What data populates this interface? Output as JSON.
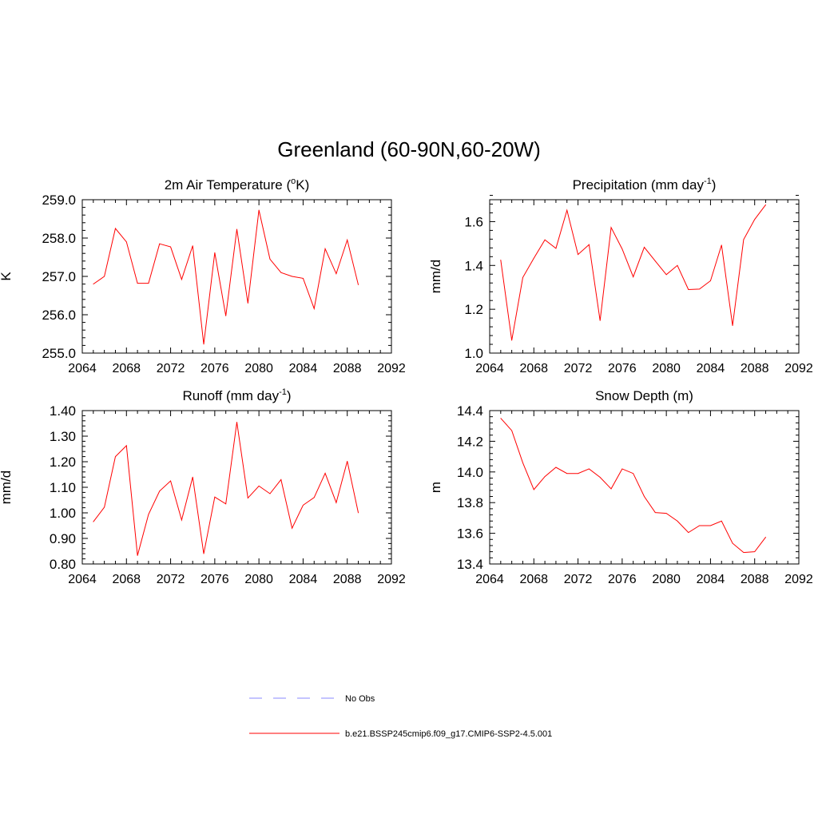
{
  "main_title": "Greenland (60-90N,60-20W)",
  "legend": {
    "obs_label": "No Obs",
    "obs_color": "#a0a0ff",
    "model_label": "b.e21.BSSP245cmip6.f09_g17.CMIP6-SSP2-4.5.001",
    "model_color": "#ff0000"
  },
  "chart_data": [
    {
      "type": "line",
      "title": "2m Air Temperature (",
      "title_sup": "o",
      "title_tail": "K)",
      "ylabel": "K",
      "xlim": [
        2064,
        2092
      ],
      "ylim": [
        255.0,
        259.0
      ],
      "xticks": [
        "2064",
        "2068",
        "2072",
        "2076",
        "2080",
        "2084",
        "2088",
        "2092"
      ],
      "yticks": [
        "255.0",
        "256.0",
        "257.0",
        "258.0",
        "259.0"
      ],
      "series": [
        {
          "x": [
            2065,
            2066,
            2067,
            2068,
            2069,
            2070,
            2071,
            2072,
            2073,
            2074,
            2075,
            2076,
            2077,
            2078,
            2079,
            2080,
            2081,
            2082,
            2083,
            2084,
            2085,
            2086,
            2087,
            2088,
            2089
          ],
          "values": [
            256.8,
            257.0,
            258.25,
            257.9,
            256.82,
            256.82,
            257.85,
            257.77,
            256.92,
            257.8,
            255.23,
            257.62,
            255.97,
            258.23,
            256.3,
            258.73,
            257.45,
            257.1,
            257.0,
            256.95,
            256.16,
            257.72,
            257.07,
            257.95,
            256.78
          ]
        }
      ]
    },
    {
      "type": "line",
      "title": "Precipitation (mm day",
      "title_sup": "-1",
      "title_tail": ")",
      "ylabel": "mm/d",
      "xlim": [
        2064,
        2092
      ],
      "ylim": [
        1.0,
        1.7
      ],
      "xticks": [
        "2064",
        "2068",
        "2072",
        "2076",
        "2080",
        "2084",
        "2088",
        "2092"
      ],
      "yticks": [
        "1.0",
        "1.2",
        "1.4",
        "1.6"
      ],
      "series": [
        {
          "x": [
            2065,
            2066,
            2067,
            2068,
            2069,
            2070,
            2071,
            2072,
            2073,
            2074,
            2075,
            2076,
            2077,
            2078,
            2079,
            2080,
            2081,
            2082,
            2083,
            2084,
            2085,
            2086,
            2087,
            2088,
            2089
          ],
          "values": [
            1.425,
            1.058,
            1.345,
            1.433,
            1.517,
            1.478,
            1.652,
            1.45,
            1.495,
            1.148,
            1.573,
            1.475,
            1.348,
            1.483,
            1.42,
            1.358,
            1.4,
            1.29,
            1.292,
            1.33,
            1.493,
            1.125,
            1.518,
            1.61,
            1.677
          ]
        }
      ]
    },
    {
      "type": "line",
      "title": "Runoff (mm day",
      "title_sup": "-1",
      "title_tail": ")",
      "ylabel": "mm/d",
      "xlim": [
        2064,
        2092
      ],
      "ylim": [
        0.8,
        1.4
      ],
      "xticks": [
        "2064",
        "2068",
        "2072",
        "2076",
        "2080",
        "2084",
        "2088",
        "2092"
      ],
      "yticks": [
        "0.80",
        "0.90",
        "1.00",
        "1.10",
        "1.20",
        "1.30",
        "1.40"
      ],
      "series": [
        {
          "x": [
            2065,
            2066,
            2067,
            2068,
            2069,
            2070,
            2071,
            2072,
            2073,
            2074,
            2075,
            2076,
            2077,
            2078,
            2079,
            2080,
            2081,
            2082,
            2083,
            2084,
            2085,
            2086,
            2087,
            2088,
            2089
          ],
          "values": [
            0.965,
            1.022,
            1.22,
            1.263,
            0.833,
            0.994,
            1.085,
            1.125,
            0.972,
            1.14,
            0.84,
            1.062,
            1.035,
            1.355,
            1.058,
            1.105,
            1.075,
            1.13,
            0.94,
            1.03,
            1.06,
            1.155,
            1.04,
            1.202,
            1.0
          ]
        }
      ]
    },
    {
      "type": "line",
      "title": "Snow Depth (m)",
      "title_sup": "",
      "title_tail": "",
      "ylabel": "m",
      "xlim": [
        2064,
        2092
      ],
      "ylim": [
        13.4,
        14.4
      ],
      "xticks": [
        "2064",
        "2068",
        "2072",
        "2076",
        "2080",
        "2084",
        "2088",
        "2092"
      ],
      "yticks": [
        "13.4",
        "13.6",
        "13.8",
        "14.0",
        "14.2",
        "14.4"
      ],
      "series": [
        {
          "x": [
            2065,
            2066,
            2067,
            2068,
            2069,
            2070,
            2071,
            2072,
            2073,
            2074,
            2075,
            2076,
            2077,
            2078,
            2079,
            2080,
            2081,
            2082,
            2083,
            2084,
            2085,
            2086,
            2087,
            2088,
            2089
          ],
          "values": [
            14.35,
            14.27,
            14.06,
            13.885,
            13.97,
            14.03,
            13.99,
            13.99,
            14.02,
            13.965,
            13.89,
            14.02,
            13.99,
            13.84,
            13.735,
            13.73,
            13.68,
            13.605,
            13.65,
            13.65,
            13.68,
            13.535,
            13.475,
            13.48,
            13.575
          ]
        }
      ]
    }
  ]
}
